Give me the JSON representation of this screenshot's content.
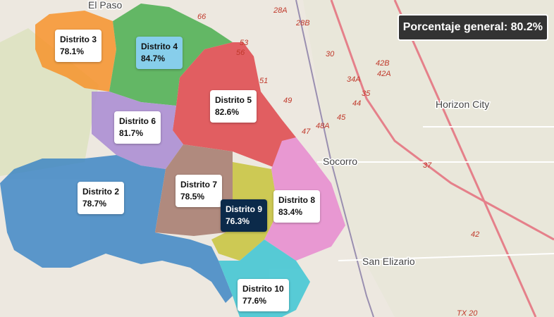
{
  "summary": {
    "label": "Porcentaje general: 80.2%"
  },
  "districts": [
    {
      "name": "Distrito 3",
      "value": "78.1%"
    },
    {
      "name": "Distrito 4",
      "value": "84.7%"
    },
    {
      "name": "Distrito 5",
      "value": "82.6%"
    },
    {
      "name": "Distrito 6",
      "value": "81.7%"
    },
    {
      "name": "Distrito 2",
      "value": "78.7%"
    },
    {
      "name": "Distrito 7",
      "value": "78.5%"
    },
    {
      "name": "Distrito 9",
      "value": "76.3%"
    },
    {
      "name": "Distrito 8",
      "value": "83.4%"
    },
    {
      "name": "Distrito 10",
      "value": "77.6%"
    }
  ],
  "places": [
    "El Paso",
    "Socorro",
    "Horizon City",
    "San Elizario"
  ],
  "roads": [
    "28A",
    "28B",
    "30",
    "34A",
    "35",
    "42A",
    "42B",
    "42",
    "37",
    "45",
    "44",
    "47",
    "48A",
    "49",
    "51",
    "53",
    "56",
    "66",
    "TX 20"
  ]
}
